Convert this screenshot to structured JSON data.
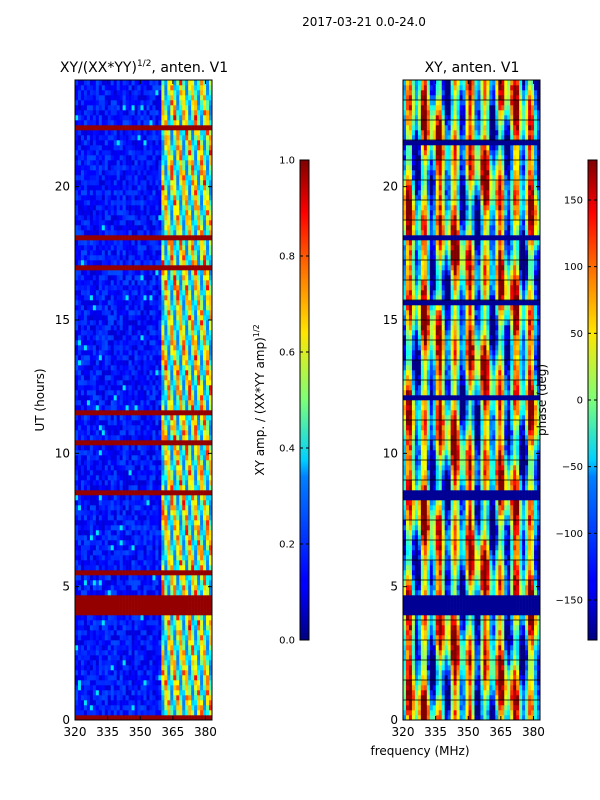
{
  "chart_data": [
    {
      "type": "heatmap",
      "suptitle": "2017-03-21 0.0-24.0",
      "title_main": "XY/(XX*YY)",
      "title_sup": "1/2",
      "title_tail": ", anten. V1",
      "xlabel": "",
      "ylabel": "UT (hours)",
      "xlim": [
        320,
        383
      ],
      "ylim": [
        0,
        24
      ],
      "xticks": [
        320,
        335,
        350,
        365,
        380
      ],
      "yticks": [
        0,
        5,
        10,
        15,
        20
      ],
      "colorbar": {
        "label_main": "XY amp. / (XX*YY amp)",
        "label_sup": "1/2",
        "range": [
          0.0,
          1.0
        ],
        "ticks": [
          "0.0",
          "0.2",
          "0.4",
          "0.6",
          "0.8",
          "1.0"
        ],
        "tick_values": [
          0.0,
          0.2,
          0.4,
          0.6,
          0.8,
          1.0
        ],
        "colormap": "jet"
      },
      "saturated_time_bands_hours": [
        [
          0.0,
          0.15
        ],
        [
          3.95,
          4.6
        ],
        [
          8.35,
          8.6
        ],
        [
          8.0,
          8.1
        ],
        [
          3.1,
          3.2
        ],
        [
          2.8,
          2.85
        ],
        [
          17.95,
          18.25
        ],
        [
          22.1,
          22.25
        ],
        [
          21.5,
          21.6
        ],
        [
          16.9,
          17.0
        ],
        [
          15.5,
          15.6
        ],
        [
          13.3,
          13.35
        ],
        [
          12.1,
          12.15
        ],
        [
          10.4,
          10.45
        ],
        [
          6.0,
          6.05
        ],
        [
          5.5,
          5.55
        ],
        [
          1.5,
          1.55
        ],
        [
          22.85,
          22.95
        ],
        [
          20.85,
          20.9
        ],
        [
          19.5,
          19.55
        ],
        [
          16.3,
          16.35
        ],
        [
          14.8,
          14.85
        ],
        [
          11.5,
          11.55
        ],
        [
          9.5,
          9.55
        ]
      ],
      "notes": "Amplitude ratio mostly low (~0.1) below 360 MHz, high (0.6-0.9) across 360-380 MHz"
    },
    {
      "type": "heatmap",
      "title_main": "XY, anten. V1",
      "xlabel": "frequency (MHz)",
      "ylabel": "",
      "xlim": [
        320,
        383
      ],
      "ylim": [
        0,
        24
      ],
      "xticks": [
        320,
        335,
        350,
        365,
        380
      ],
      "yticks": [
        0,
        5,
        10,
        15,
        20
      ],
      "colorbar": {
        "label": "phase (deg)",
        "range": [
          -180,
          180
        ],
        "ticks": [
          "−150",
          "−100",
          "−50",
          "0",
          "50",
          "100",
          "150"
        ],
        "tick_values": [
          -150,
          -100,
          -50,
          0,
          50,
          100,
          150
        ],
        "colormap": "jet"
      },
      "flagged_time_bands_hours": [
        [
          4.0,
          4.6
        ],
        [
          8.3,
          8.6
        ],
        [
          15.6,
          15.7
        ],
        [
          18.0,
          18.2
        ],
        [
          22.1,
          22.2
        ],
        [
          12.0,
          12.1
        ],
        [
          2.8,
          2.9
        ],
        [
          1.5,
          1.55
        ],
        [
          23.0,
          23.05
        ],
        [
          21.6,
          21.7
        ]
      ],
      "notes": "Phase varies across full range with vertical striping and diagonal structures"
    }
  ]
}
